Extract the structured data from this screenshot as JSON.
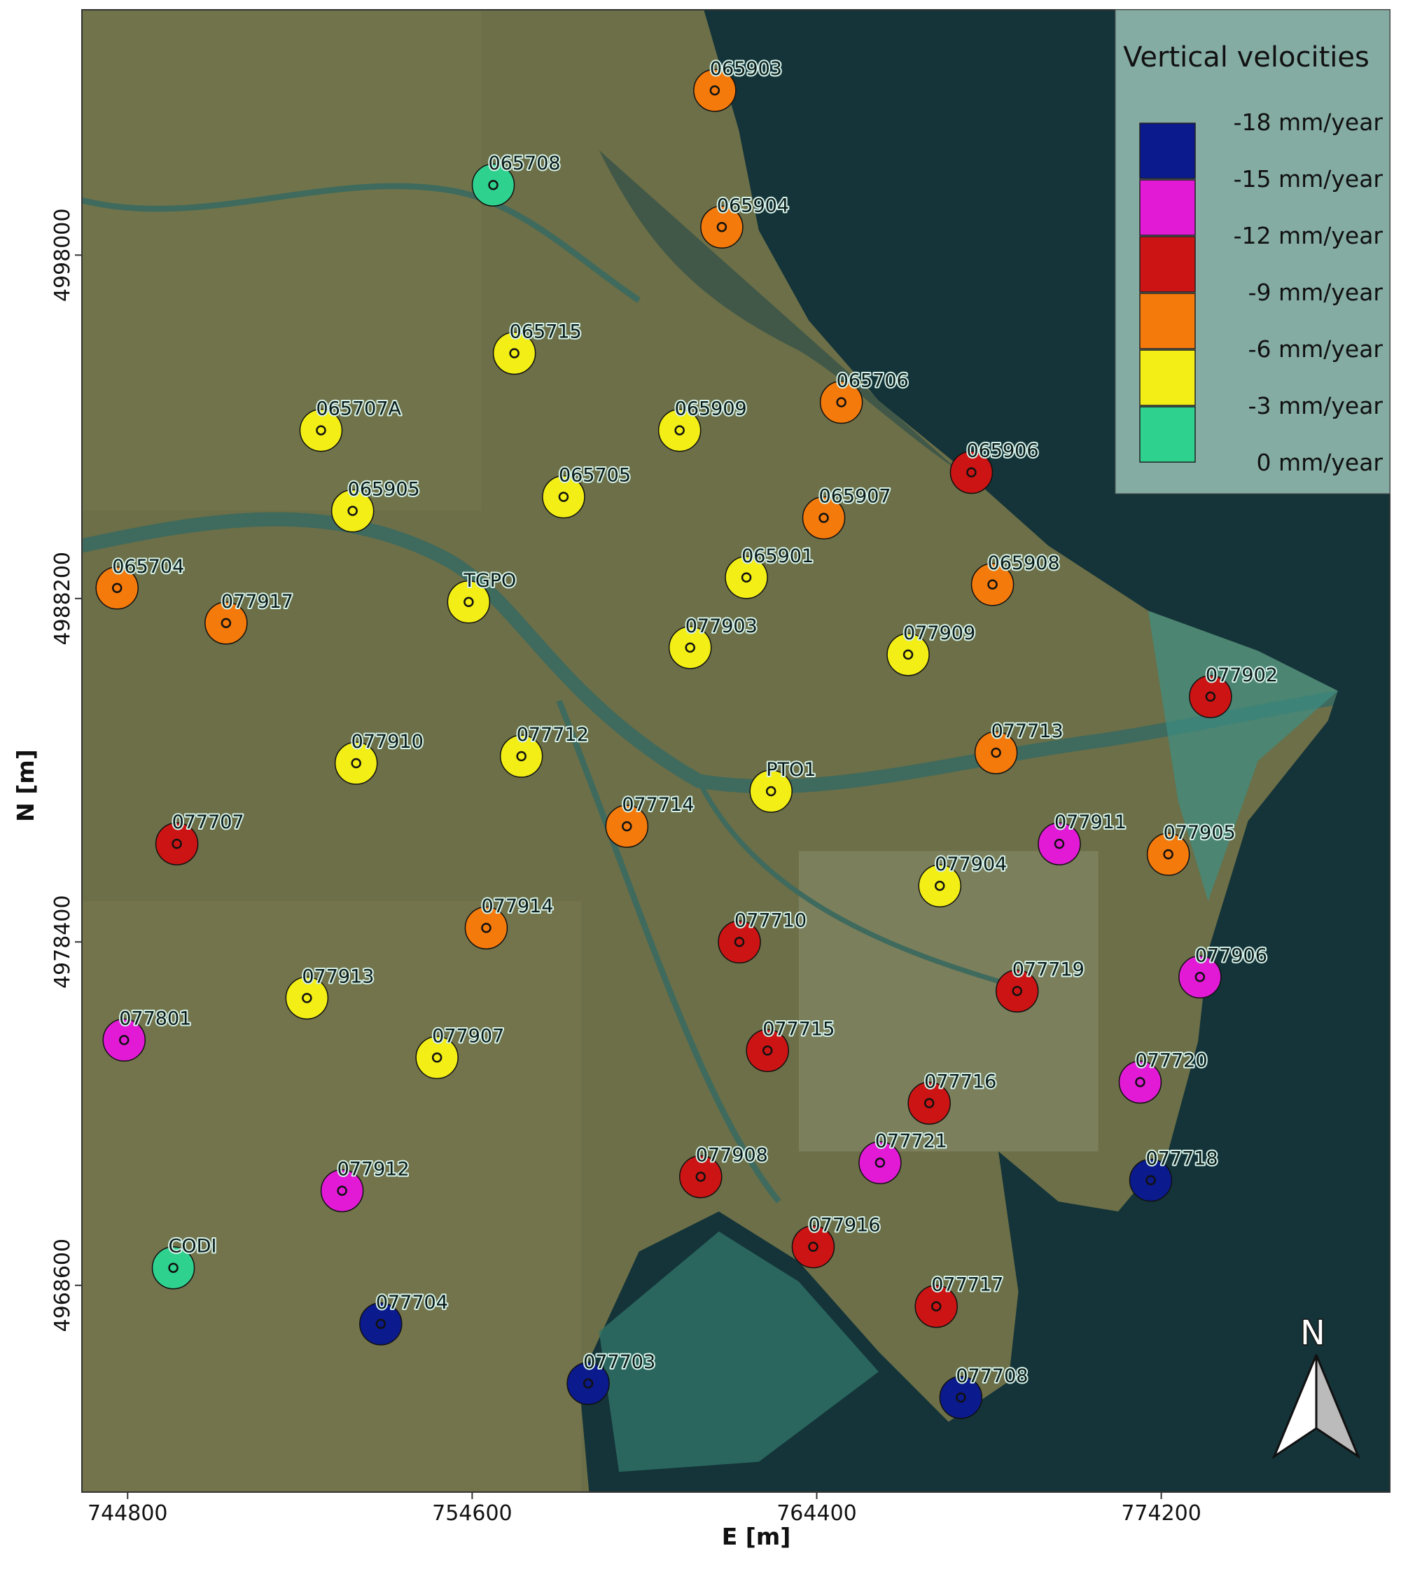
{
  "map": {
    "xlabel": "E [m]",
    "ylabel": "N [m]",
    "xlim": [
      743500,
      780700
    ],
    "ylim": [
      4962700,
      5005000
    ],
    "xticks": [
      744800,
      754600,
      764400,
      774200
    ],
    "yticks": [
      4968600,
      4978400,
      4988200,
      4998000
    ],
    "stations": [
      {
        "name": "065903",
        "E": 761500,
        "N": 5002700,
        "color": "#f47a0c"
      },
      {
        "name": "065708",
        "E": 755200,
        "N": 5000000,
        "color": "#2fd18e"
      },
      {
        "name": "065904",
        "E": 761700,
        "N": 4998800,
        "color": "#f47a0c"
      },
      {
        "name": "065715",
        "E": 755800,
        "N": 4995200,
        "color": "#f2ee16"
      },
      {
        "name": "065706",
        "E": 765100,
        "N": 4993800,
        "color": "#f47a0c"
      },
      {
        "name": "065707A",
        "E": 750300,
        "N": 4993000,
        "color": "#f2ee16"
      },
      {
        "name": "065909",
        "E": 760500,
        "N": 4993000,
        "color": "#f2ee16"
      },
      {
        "name": "065906",
        "E": 768800,
        "N": 4991800,
        "color": "#cc1414"
      },
      {
        "name": "065905",
        "E": 751200,
        "N": 4990700,
        "color": "#f2ee16"
      },
      {
        "name": "065705",
        "E": 757200,
        "N": 4991100,
        "color": "#f2ee16"
      },
      {
        "name": "065907",
        "E": 764600,
        "N": 4990500,
        "color": "#f47a0c"
      },
      {
        "name": "065901",
        "E": 762400,
        "N": 4988800,
        "color": "#f2ee16"
      },
      {
        "name": "065704",
        "E": 744500,
        "N": 4988500,
        "color": "#f47a0c"
      },
      {
        "name": "TGPO",
        "E": 754500,
        "N": 4988100,
        "color": "#f2ee16"
      },
      {
        "name": "065908",
        "E": 769400,
        "N": 4988600,
        "color": "#f47a0c"
      },
      {
        "name": "077917",
        "E": 747600,
        "N": 4987500,
        "color": "#f47a0c"
      },
      {
        "name": "077903",
        "E": 760800,
        "N": 4986800,
        "color": "#f2ee16"
      },
      {
        "name": "077909",
        "E": 767000,
        "N": 4986600,
        "color": "#f2ee16"
      },
      {
        "name": "077902",
        "E": 775600,
        "N": 4985400,
        "color": "#cc1414"
      },
      {
        "name": "077713",
        "E": 769500,
        "N": 4983800,
        "color": "#f47a0c"
      },
      {
        "name": "077910",
        "E": 751300,
        "N": 4983500,
        "color": "#f2ee16"
      },
      {
        "name": "077712",
        "E": 756000,
        "N": 4983700,
        "color": "#f2ee16"
      },
      {
        "name": "PTO1",
        "E": 763100,
        "N": 4982700,
        "color": "#f2ee16"
      },
      {
        "name": "077714",
        "E": 759000,
        "N": 4981700,
        "color": "#f47a0c"
      },
      {
        "name": "077707",
        "E": 746200,
        "N": 4981200,
        "color": "#cc1414"
      },
      {
        "name": "077911",
        "E": 771300,
        "N": 4981200,
        "color": "#e21ad6"
      },
      {
        "name": "077905",
        "E": 774400,
        "N": 4980900,
        "color": "#f47a0c"
      },
      {
        "name": "077904",
        "E": 767900,
        "N": 4980000,
        "color": "#f2ee16"
      },
      {
        "name": "077914",
        "E": 755000,
        "N": 4978800,
        "color": "#f47a0c"
      },
      {
        "name": "077710",
        "E": 762200,
        "N": 4978400,
        "color": "#cc1414"
      },
      {
        "name": "077719",
        "E": 770100,
        "N": 4977000,
        "color": "#cc1414"
      },
      {
        "name": "077906",
        "E": 775300,
        "N": 4977400,
        "color": "#e21ad6"
      },
      {
        "name": "077913",
        "E": 749900,
        "N": 4976800,
        "color": "#f2ee16"
      },
      {
        "name": "077801",
        "E": 744700,
        "N": 4975600,
        "color": "#e21ad6"
      },
      {
        "name": "077907",
        "E": 753600,
        "N": 4975100,
        "color": "#f2ee16"
      },
      {
        "name": "077715",
        "E": 763000,
        "N": 4975300,
        "color": "#cc1414"
      },
      {
        "name": "077720",
        "E": 773600,
        "N": 4974400,
        "color": "#e21ad6"
      },
      {
        "name": "077716",
        "E": 767600,
        "N": 4973800,
        "color": "#cc1414"
      },
      {
        "name": "077721",
        "E": 766200,
        "N": 4972100,
        "color": "#e21ad6"
      },
      {
        "name": "077908",
        "E": 761100,
        "N": 4971700,
        "color": "#cc1414"
      },
      {
        "name": "077912",
        "E": 750900,
        "N": 4971300,
        "color": "#e21ad6"
      },
      {
        "name": "077718",
        "E": 773900,
        "N": 4971600,
        "color": "#0b1a8c"
      },
      {
        "name": "077916",
        "E": 764300,
        "N": 4969700,
        "color": "#cc1414"
      },
      {
        "name": "CODI",
        "E": 746100,
        "N": 4969100,
        "color": "#2fd18e"
      },
      {
        "name": "077704",
        "E": 752000,
        "N": 4967500,
        "color": "#0b1a8c"
      },
      {
        "name": "077717",
        "E": 767800,
        "N": 4968000,
        "color": "#cc1414"
      },
      {
        "name": "077703",
        "E": 757900,
        "N": 4965800,
        "color": "#0b1a8c"
      },
      {
        "name": "077708",
        "E": 768500,
        "N": 4965400,
        "color": "#0b1a8c"
      }
    ]
  },
  "legend": {
    "title": "Vertical velocities",
    "labels": [
      "-18 mm/year",
      "-15 mm/year",
      "-12 mm/year",
      "-9 mm/year",
      "-6 mm/year",
      "-3 mm/year",
      "0 mm/year"
    ],
    "colors": [
      "#0b1a8c",
      "#e21ad6",
      "#cc1414",
      "#f47a0c",
      "#f2ee16",
      "#2fd18e"
    ]
  },
  "north_label": "N"
}
